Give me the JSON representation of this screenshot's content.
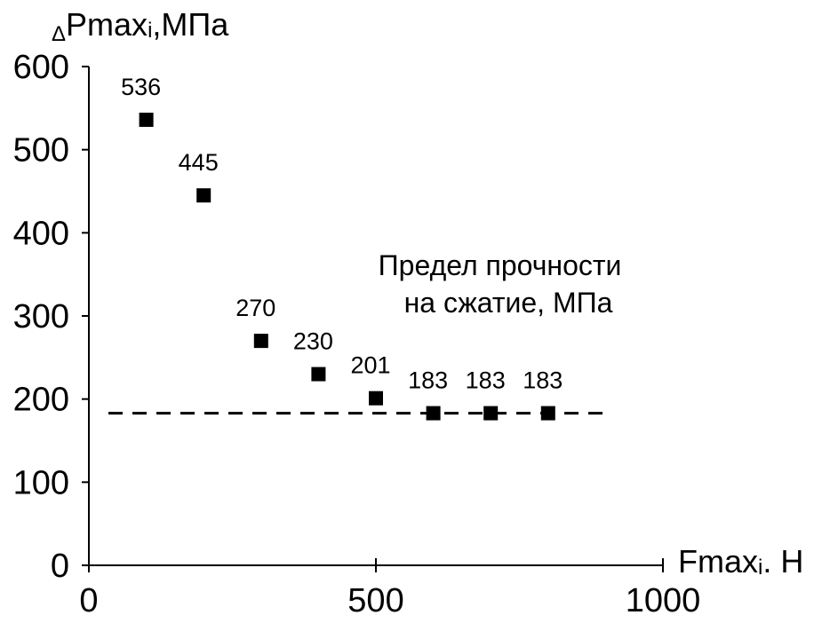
{
  "chart_data": {
    "type": "scatter",
    "x": [
      100,
      200,
      300,
      400,
      500,
      600,
      700,
      800
    ],
    "y": [
      536,
      445,
      270,
      230,
      201,
      183,
      183,
      183
    ],
    "point_labels": [
      "536",
      "445",
      "270",
      "230",
      "201",
      "183",
      "183",
      "183"
    ],
    "xlim": [
      0,
      1000
    ],
    "ylim": [
      0,
      600
    ],
    "x_ticks": [
      0,
      500,
      1000
    ],
    "x_tick_labels": [
      "0",
      "500",
      "1000"
    ],
    "y_ticks": [
      0,
      100,
      200,
      300,
      400,
      500,
      600
    ],
    "y_tick_labels": [
      "0",
      "100",
      "200",
      "300",
      "400",
      "500",
      "600"
    ],
    "ylabel": {
      "prefix": "Δ",
      "main": "Pmax",
      "sub": "i",
      "unit": ",МПа"
    },
    "xlabel": {
      "main": "Fmax",
      "sub": "i",
      "unit": ". Н"
    },
    "reference_line": {
      "y": 183,
      "x_range": [
        0,
        900
      ],
      "style": "dashed"
    },
    "annotation": [
      "Предел прочности",
      "на сжатие, МПа"
    ],
    "grid": false,
    "marker": "square",
    "colors": {
      "marker": "#000000",
      "axis": "#000000",
      "background": "#ffffff"
    }
  }
}
